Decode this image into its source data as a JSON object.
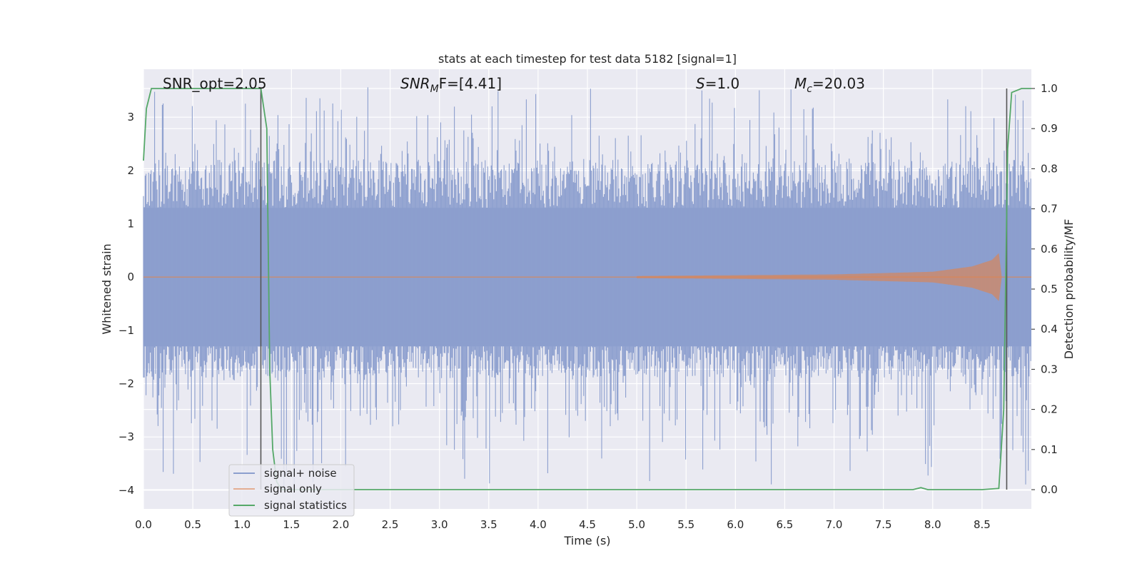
{
  "chart_data": {
    "type": "line",
    "title": "stats at each timestep for test data 5182 [signal=1]",
    "xlabel": "Time (s)",
    "ylabel_left": "Whitened strain",
    "ylabel_right": "Detection probability/MF",
    "xlim": [
      0.0,
      9.0
    ],
    "ylim_left": [
      -4.35,
      3.9
    ],
    "ylim_right": [
      -0.048,
      1.048
    ],
    "x_ticks": [
      "0.0",
      "0.5",
      "1.0",
      "1.5",
      "2.0",
      "2.5",
      "3.0",
      "3.5",
      "4.0",
      "4.5",
      "5.0",
      "5.5",
      "6.0",
      "6.5",
      "7.0",
      "7.5",
      "8.0",
      "8.5"
    ],
    "y_ticks_left": [
      "−4",
      "−3",
      "−2",
      "−1",
      "0",
      "1",
      "2",
      "3"
    ],
    "y_ticks_right": [
      "0.0",
      "0.1",
      "0.2",
      "0.3",
      "0.4",
      "0.5",
      "0.6",
      "0.7",
      "0.8",
      "0.9",
      "1.0"
    ],
    "grid": true,
    "legend_position": "lower-left",
    "annotations": {
      "snr_opt": "SNR_opt=2.05",
      "snr_mf": {
        "symbol": "SNR",
        "sub": "M",
        "suffix": "F=[4.41]"
      },
      "s_value": {
        "symbol": "S",
        "suffix": "=1.0"
      },
      "mc": {
        "symbol": "M",
        "sub": "c",
        "suffix": "=20.03"
      }
    },
    "vlines": [
      1.19,
      8.75
    ],
    "series": [
      {
        "name": "signal+ noise",
        "color": "#8c9fce",
        "axis": "left",
        "kind": "noise_band",
        "sample_rate": 2048,
        "band_envelope": {
          "core_abs": 1.3,
          "typical_peak_upper": [
            2.0,
            3.6
          ],
          "typical_peak_lower": [
            -1.7,
            -4.0
          ]
        }
      },
      {
        "name": "signal only",
        "color": "#dd8452",
        "axis": "left",
        "kind": "chirp",
        "amplitude_points": {
          "t": [
            0.0,
            5.0,
            7.0,
            8.0,
            8.4,
            8.6,
            8.67,
            8.7
          ],
          "amp": [
            0.0,
            0.02,
            0.05,
            0.1,
            0.2,
            0.32,
            0.45,
            0.0
          ]
        }
      },
      {
        "name": "signal statistics",
        "color": "#55a868",
        "axis": "right",
        "kind": "line",
        "x": [
          0.0,
          0.03,
          0.08,
          0.15,
          1.19,
          1.25,
          1.28,
          1.31,
          1.35,
          1.4,
          7.8,
          7.88,
          7.95,
          8.5,
          8.67,
          8.72,
          8.76,
          8.8,
          8.9,
          9.0
        ],
        "y": [
          0.82,
          0.95,
          1.0,
          1.0,
          1.0,
          0.9,
          0.3,
          0.1,
          0.02,
          0.0,
          0.0,
          0.005,
          0.0,
          0.0,
          0.003,
          0.2,
          0.85,
          0.99,
          1.0,
          1.0
        ]
      }
    ]
  }
}
